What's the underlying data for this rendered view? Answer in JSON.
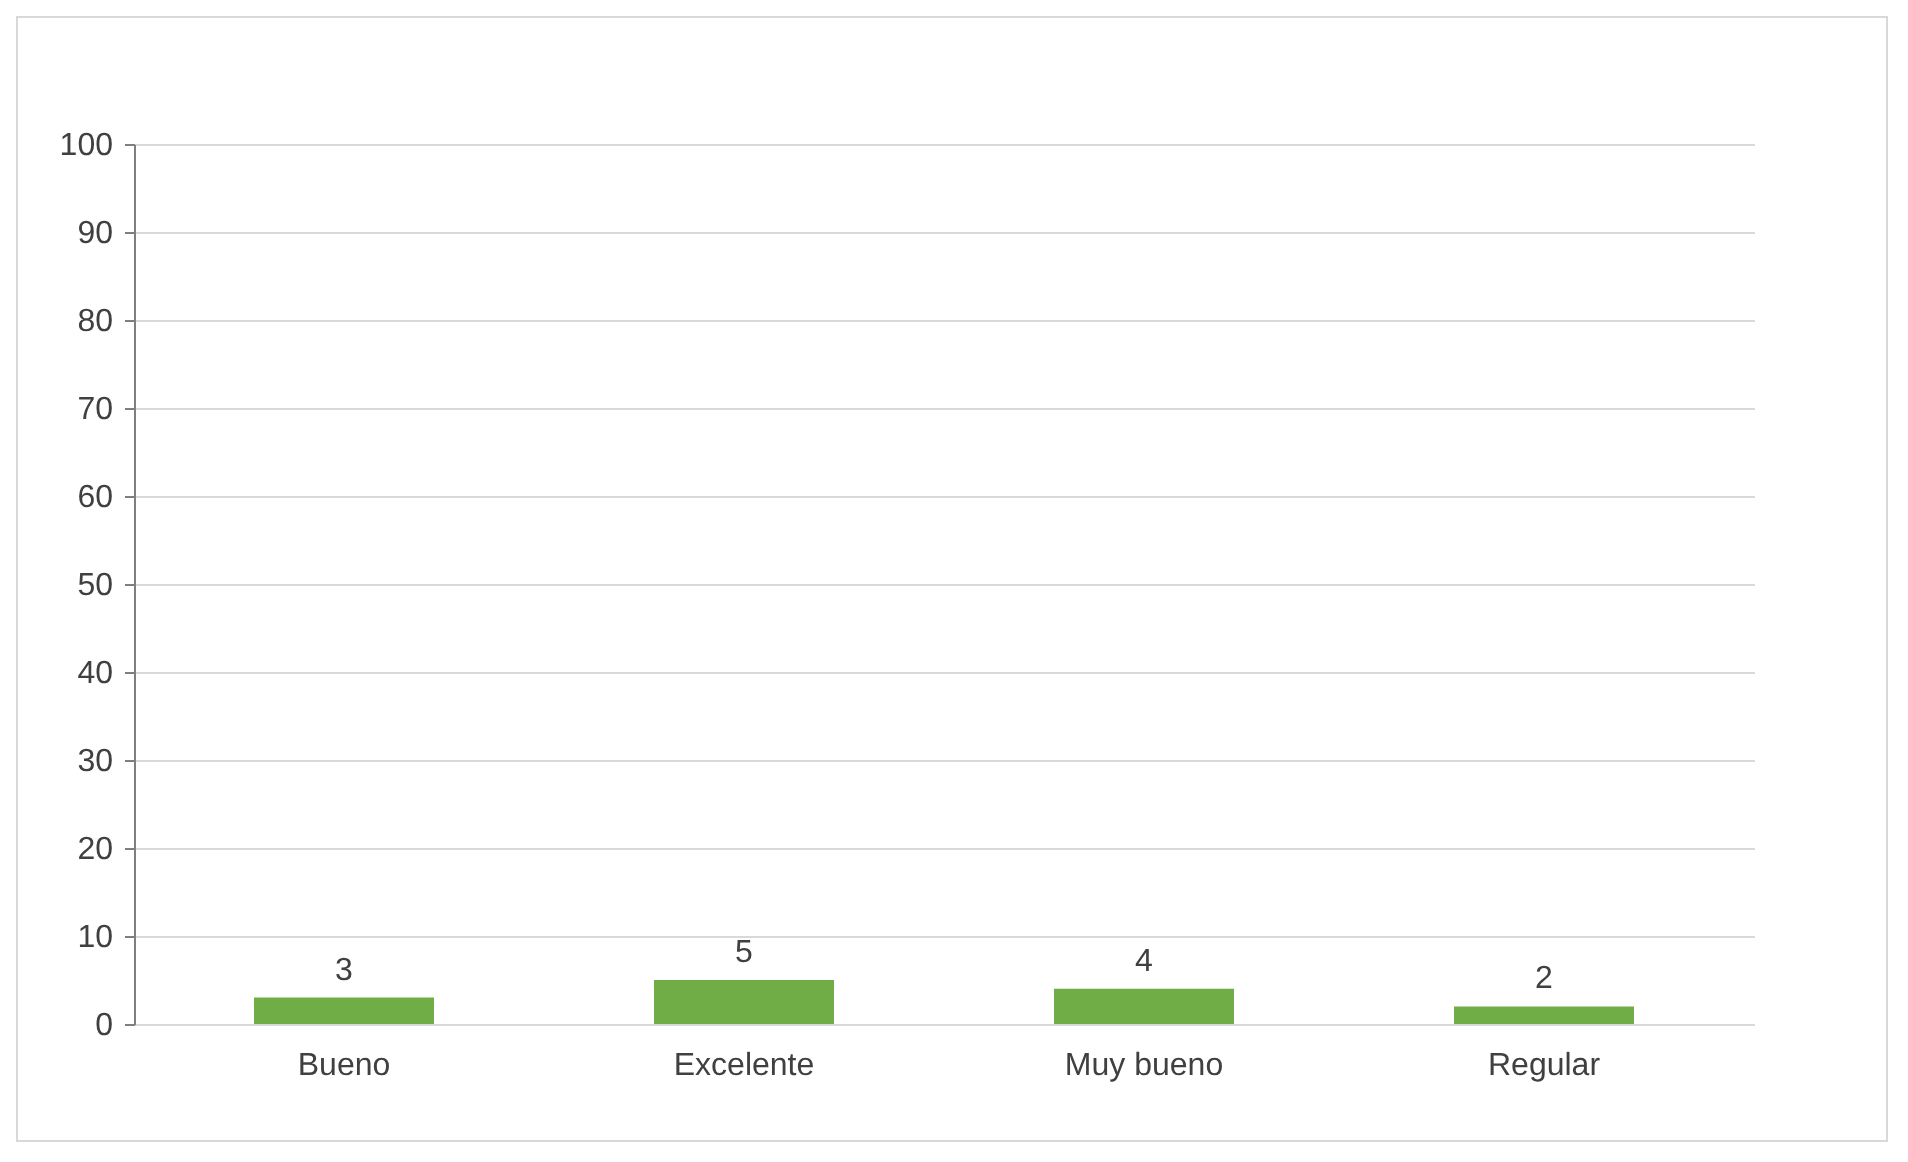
{
  "chart_data": {
    "type": "bar",
    "categories": [
      "Bueno",
      "Excelente",
      "Muy bueno",
      "Regular"
    ],
    "values": [
      3,
      5,
      4,
      2
    ],
    "color": "#70ad47",
    "data_labels": true,
    "ylim": [
      0,
      100
    ],
    "yticks": [
      0,
      10,
      20,
      30,
      40,
      50,
      60,
      70,
      80,
      90,
      100
    ],
    "grid": "y"
  }
}
